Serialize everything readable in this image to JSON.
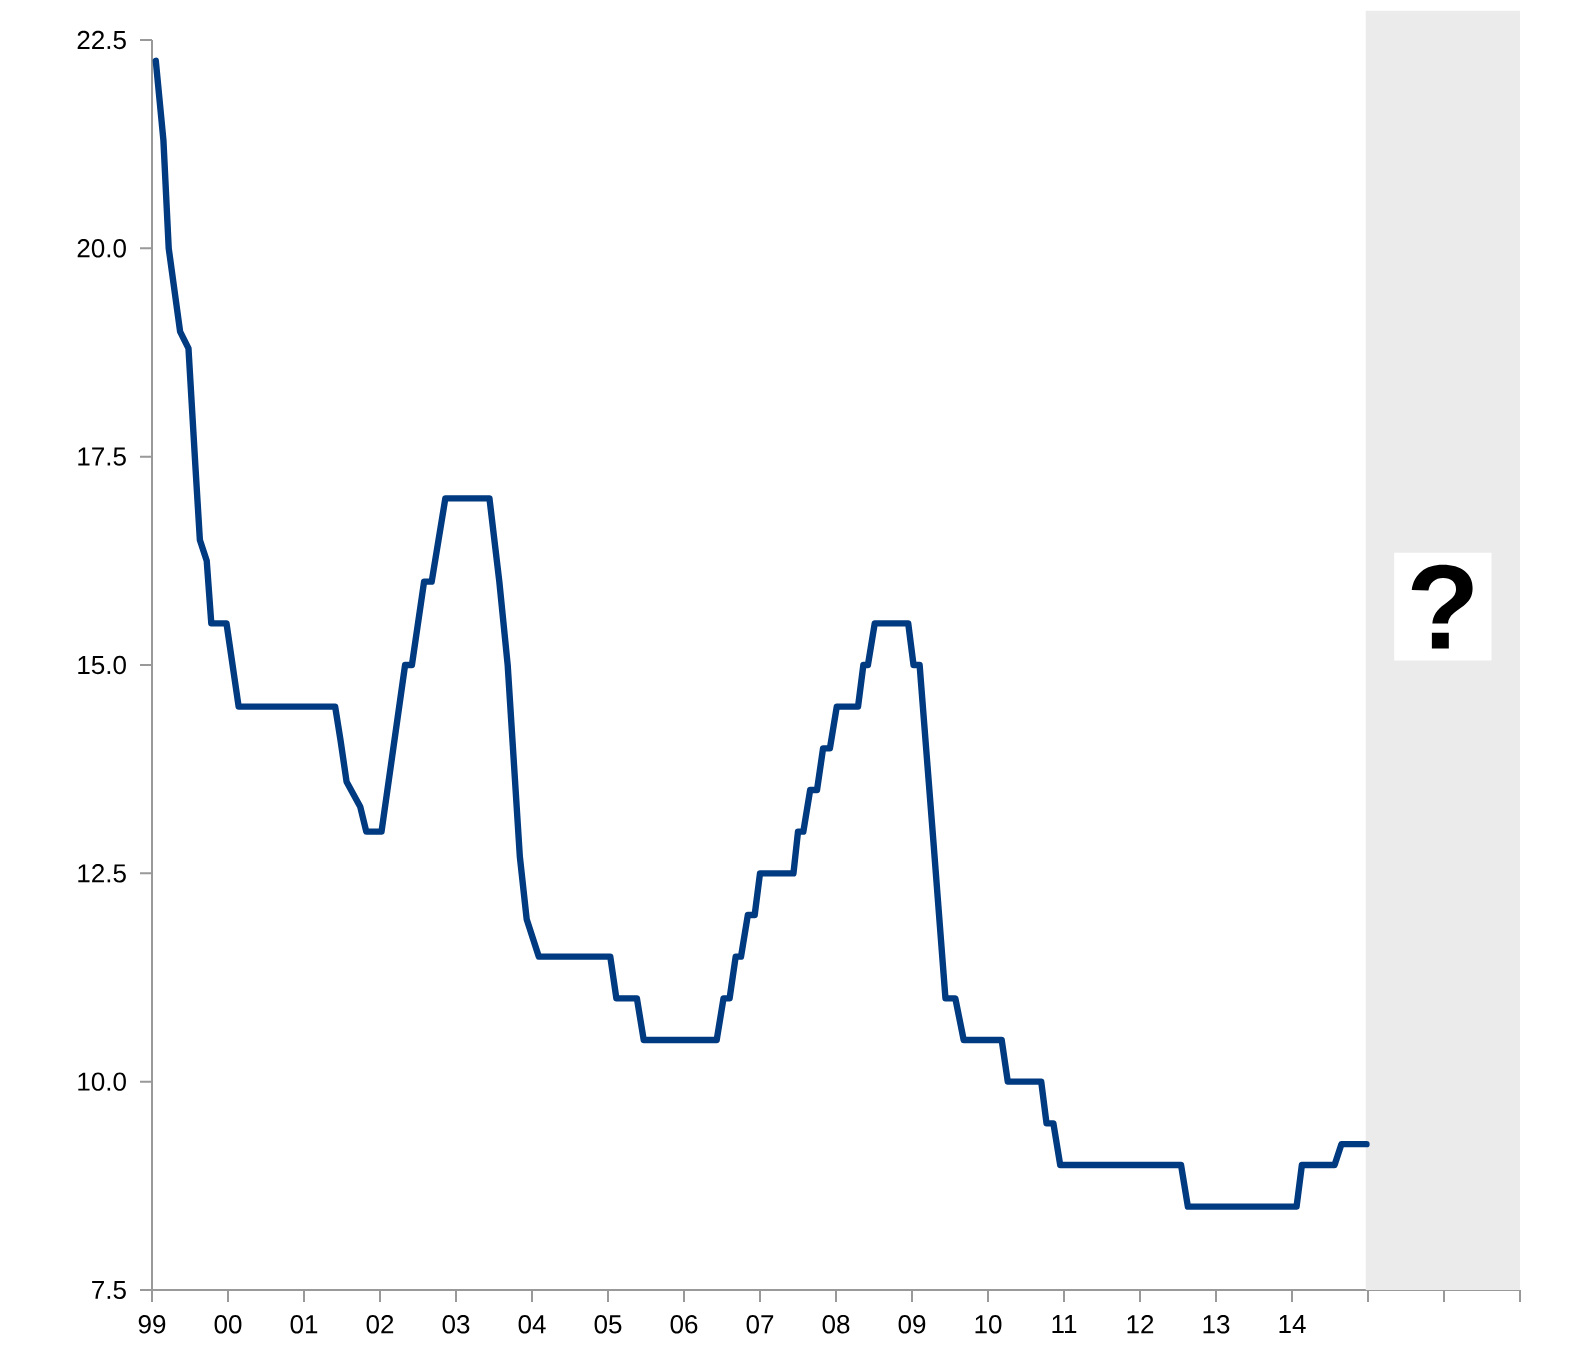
{
  "chart_data": {
    "type": "line",
    "x": [
      1999.05,
      1999.15,
      1999.22,
      1999.37,
      1999.48,
      1999.57,
      1999.63,
      1999.72,
      1999.78,
      1999.98,
      2000.14,
      2001.41,
      2001.48,
      2001.56,
      2001.74,
      2001.82,
      2002.02,
      2002.33,
      2002.42,
      2002.58,
      2002.68,
      2002.86,
      2003.44,
      2003.57,
      2003.68,
      2003.84,
      2003.93,
      2004.09,
      2005.03,
      2005.11,
      2005.38,
      2005.47,
      2006.43,
      2006.52,
      2006.6,
      2006.68,
      2006.75,
      2006.84,
      2006.93,
      2007.0,
      2007.44,
      2007.5,
      2007.57,
      2007.66,
      2007.75,
      2007.83,
      2007.92,
      2008.01,
      2008.29,
      2008.36,
      2008.42,
      2008.51,
      2008.95,
      2009.02,
      2009.1,
      2009.28,
      2009.44,
      2009.57,
      2009.68,
      2010.18,
      2010.26,
      2010.7,
      2010.77,
      2010.86,
      2010.95,
      2012.54,
      2012.63,
      2014.06,
      2014.13,
      2014.56,
      2014.65,
      2014.98
    ],
    "values": [
      22.25,
      21.3,
      20.0,
      19.0,
      18.8,
      17.4,
      16.5,
      16.25,
      15.5,
      15.5,
      14.5,
      14.5,
      14.1,
      13.6,
      13.3,
      13.0,
      13.0,
      15.0,
      15.0,
      16.0,
      16.0,
      17.0,
      17.0,
      16.0,
      15.0,
      12.7,
      11.95,
      11.5,
      11.5,
      11.0,
      11.0,
      10.5,
      10.5,
      11.0,
      11.0,
      11.5,
      11.5,
      12.0,
      12.0,
      12.5,
      12.5,
      13.0,
      13.0,
      13.5,
      13.5,
      14.0,
      14.0,
      14.5,
      14.5,
      15.0,
      15.0,
      15.5,
      15.5,
      15.0,
      15.0,
      12.9,
      11.0,
      11.0,
      10.5,
      10.5,
      10.0,
      10.0,
      9.5,
      9.5,
      9.0,
      9.0,
      8.5,
      8.5,
      9.0,
      9.0,
      9.25,
      9.25
    ],
    "color": "#003a80",
    "marker": "none",
    "line_style": "solid",
    "xlim": [
      1999,
      2017
    ],
    "xticks": [
      {
        "value": 1999,
        "label": "99"
      },
      {
        "value": 2000,
        "label": "00"
      },
      {
        "value": 2001,
        "label": "01"
      },
      {
        "value": 2002,
        "label": "02"
      },
      {
        "value": 2003,
        "label": "03"
      },
      {
        "value": 2004,
        "label": "04"
      },
      {
        "value": 2005,
        "label": "05"
      },
      {
        "value": 2006,
        "label": "06"
      },
      {
        "value": 2007,
        "label": "07"
      },
      {
        "value": 2008,
        "label": "08"
      },
      {
        "value": 2009,
        "label": "09"
      },
      {
        "value": 2010,
        "label": "10"
      },
      {
        "value": 2011,
        "label": "11"
      },
      {
        "value": 2012,
        "label": "12"
      },
      {
        "value": 2013,
        "label": "13"
      },
      {
        "value": 2014,
        "label": "14"
      },
      {
        "value": 2015,
        "label": null
      },
      {
        "value": 2016,
        "label": null
      },
      {
        "value": 2017,
        "label": null
      }
    ],
    "ylim": [
      7.5,
      22.5
    ],
    "yticks": [
      {
        "value": 7.5,
        "label": "7.5"
      },
      {
        "value": 10,
        "label": "10.0"
      },
      {
        "value": 12.5,
        "label": "12.5"
      },
      {
        "value": 15,
        "label": "15.0"
      },
      {
        "value": 17.5,
        "label": "17.5"
      },
      {
        "value": 20,
        "label": "20.0"
      },
      {
        "value": 22.5,
        "label": "22.5"
      }
    ],
    "bands": [
      {
        "axis": "x",
        "from": 2014.97,
        "to": 2017,
        "color": "#ebebeb",
        "label": "?"
      }
    ]
  }
}
